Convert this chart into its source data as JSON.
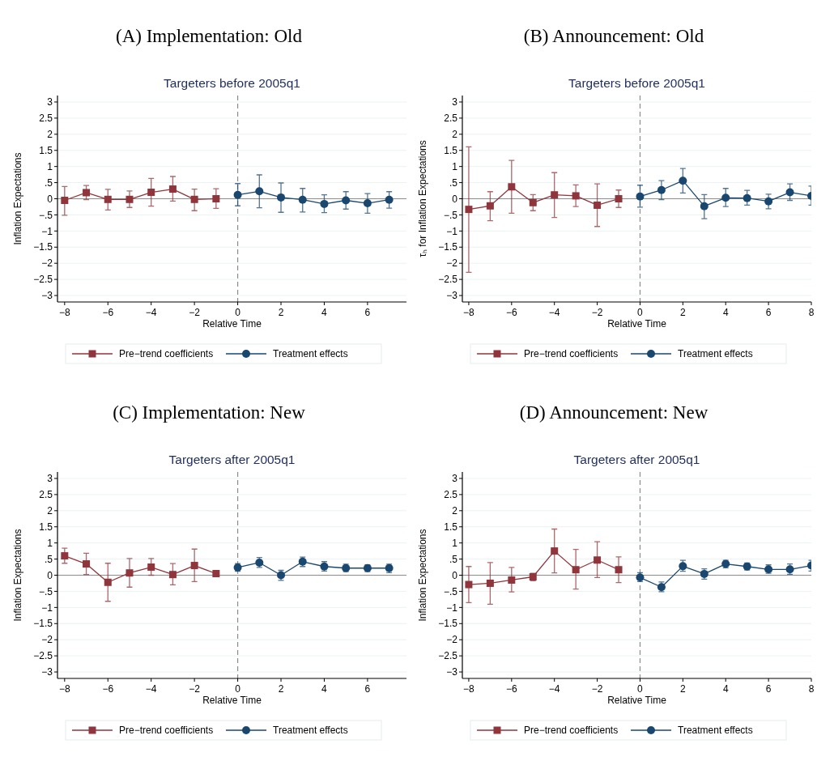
{
  "chart_data": [
    {
      "type": "line",
      "title": "(A) Implementation: Old",
      "subtitle": "Targeters before 2005q1",
      "xlabel": "Relative Time",
      "ylabel": "Inflation Expectations",
      "xlim": [
        -8.33,
        7.8
      ],
      "ylim": [
        -3.2,
        3.2
      ],
      "xticks": [
        {
          "value": -8,
          "label": "−8"
        },
        {
          "value": -6,
          "label": "−6"
        },
        {
          "value": -4,
          "label": "−4"
        },
        {
          "value": -2,
          "label": "−2"
        },
        0,
        2,
        4,
        6
      ],
      "yticks": [
        3,
        2.5,
        2,
        1.5,
        1,
        {
          "value": 0.5,
          "label": ".5"
        },
        0,
        {
          "value": -0.5,
          "label": "−.5"
        },
        {
          "value": -1,
          "label": "−1"
        },
        {
          "value": -1.5,
          "label": "−1.5"
        },
        {
          "value": -2,
          "label": "−2"
        },
        {
          "value": -2.5,
          "label": "−2.5"
        },
        {
          "value": -3,
          "label": "−3"
        }
      ],
      "grid": "y",
      "legend": "bottom",
      "line_style": "solid",
      "ref_lines": [
        {
          "axis": "x",
          "value": 0,
          "color": "#8c8c8c",
          "line_style": "dashed"
        },
        {
          "axis": "y",
          "value": 0,
          "color": "#8c8c8c",
          "line_style": "solid"
        }
      ],
      "series": [
        {
          "name": "Pre−trend coefficients",
          "color": "#90353b",
          "marker": "square",
          "x": [
            -8,
            -7,
            -6,
            -5,
            -4,
            -3,
            -2,
            -1
          ],
          "values": [
            -0.05,
            0.19,
            -0.02,
            -0.02,
            0.2,
            0.3,
            -0.02,
            0
          ],
          "errors": [
            [
              -0.51,
              0.38
            ],
            [
              -0.03,
              0.41
            ],
            [
              -0.35,
              0.29
            ],
            [
              -0.27,
              0.24
            ],
            [
              -0.23,
              0.63
            ],
            [
              -0.07,
              0.69
            ],
            [
              -0.37,
              0.3
            ],
            [
              -0.3,
              0.31
            ]
          ]
        },
        {
          "name": "Treatment effects",
          "color": "#1a476f",
          "marker": "circle",
          "x": [
            0,
            1,
            2,
            3,
            4,
            5,
            6,
            7
          ],
          "values": [
            0.12,
            0.23,
            0.04,
            -0.03,
            -0.16,
            -0.05,
            -0.14,
            -0.03
          ],
          "errors": [
            [
              -0.22,
              0.47
            ],
            [
              -0.28,
              0.74
            ],
            [
              -0.42,
              0.49
            ],
            [
              -0.41,
              0.32
            ],
            [
              -0.43,
              0.12
            ],
            [
              -0.32,
              0.22
            ],
            [
              -0.45,
              0.16
            ],
            [
              -0.29,
              0.22
            ]
          ]
        }
      ]
    },
    {
      "type": "line",
      "title": "(B) Announcement: Old",
      "subtitle": "Targeters before 2005q1",
      "xlabel": "Relative Time",
      "ylabel": "τₕ for Inflation Expectations",
      "xlim": [
        -8.3,
        8
      ],
      "ylim": [
        -3.2,
        3.2
      ],
      "xticks": [
        {
          "value": -8,
          "label": "−8"
        },
        {
          "value": -6,
          "label": "−6"
        },
        {
          "value": -4,
          "label": "−4"
        },
        {
          "value": -2,
          "label": "−2"
        },
        0,
        2,
        4,
        6,
        8
      ],
      "yticks": [
        3,
        2.5,
        2,
        1.5,
        1,
        {
          "value": 0.5,
          "label": ".5"
        },
        0,
        {
          "value": -0.5,
          "label": "−.5"
        },
        {
          "value": -1,
          "label": "−1"
        },
        {
          "value": -1.5,
          "label": "−1.5"
        },
        {
          "value": -2,
          "label": "−2"
        },
        {
          "value": -2.5,
          "label": "−2.5"
        },
        {
          "value": -3,
          "label": "−3"
        }
      ],
      "grid": "y",
      "legend": "bottom",
      "line_style": "solid",
      "ref_lines": [
        {
          "axis": "x",
          "value": 0,
          "color": "#8c8c8c",
          "line_style": "dashed"
        },
        {
          "axis": "y",
          "value": 0,
          "color": "#8c8c8c",
          "line_style": "solid"
        }
      ],
      "series": [
        {
          "name": "Pre−trend coefficients",
          "color": "#90353b",
          "marker": "square",
          "x": [
            -8,
            -7,
            -6,
            -5,
            -4,
            -3,
            -2,
            -1
          ],
          "values": [
            -0.33,
            -0.22,
            0.37,
            -0.12,
            0.12,
            0.09,
            -0.2,
            0
          ],
          "errors": [
            [
              -2.28,
              1.61
            ],
            [
              -0.68,
              0.22
            ],
            [
              -0.45,
              1.19
            ],
            [
              -0.37,
              0.13
            ],
            [
              -0.58,
              0.81
            ],
            [
              -0.24,
              0.43
            ],
            [
              -0.86,
              0.46
            ],
            [
              -0.27,
              0.27
            ]
          ]
        },
        {
          "name": "Treatment effects",
          "color": "#1a476f",
          "marker": "circle",
          "x": [
            0,
            1,
            2,
            3,
            4,
            5,
            6,
            7,
            8
          ],
          "values": [
            0.07,
            0.27,
            0.56,
            -0.23,
            0.03,
            0.02,
            -0.08,
            0.2,
            0.09
          ],
          "errors": [
            [
              -0.26,
              0.42
            ],
            [
              -0.03,
              0.56
            ],
            [
              0.18,
              0.94
            ],
            [
              -0.62,
              0.13
            ],
            [
              -0.24,
              0.32
            ],
            [
              -0.2,
              0.26
            ],
            [
              -0.31,
              0.14
            ],
            [
              -0.05,
              0.46
            ],
            [
              -0.2,
              0.39
            ]
          ]
        }
      ]
    },
    {
      "type": "line",
      "title": "(C) Implementation: New",
      "subtitle": "Targeters after 2005q1",
      "xlabel": "Relative Time",
      "ylabel": "Inflation Expectations",
      "xlim": [
        -8.33,
        7.8
      ],
      "ylim": [
        -3.2,
        3.2
      ],
      "xticks": [
        {
          "value": -8,
          "label": "−8"
        },
        {
          "value": -6,
          "label": "−6"
        },
        {
          "value": -4,
          "label": "−4"
        },
        {
          "value": -2,
          "label": "−2"
        },
        0,
        2,
        4,
        6
      ],
      "yticks": [
        3,
        2.5,
        2,
        1.5,
        1,
        {
          "value": 0.5,
          "label": ".5"
        },
        0,
        {
          "value": -0.5,
          "label": "−.5"
        },
        {
          "value": -1,
          "label": "−1"
        },
        {
          "value": -1.5,
          "label": "−1.5"
        },
        {
          "value": -2,
          "label": "−2"
        },
        {
          "value": -2.5,
          "label": "−2.5"
        },
        {
          "value": -3,
          "label": "−3"
        }
      ],
      "grid": "y",
      "legend": "bottom",
      "line_style": "solid",
      "ref_lines": [
        {
          "axis": "x",
          "value": 0,
          "color": "#8c8c8c",
          "line_style": "dashed"
        },
        {
          "axis": "y",
          "value": 0,
          "color": "#8c8c8c",
          "line_style": "solid"
        }
      ],
      "series": [
        {
          "name": "Pre−trend coefficients",
          "color": "#90353b",
          "marker": "square",
          "x": [
            -8,
            -7,
            -6,
            -5,
            -4,
            -3,
            -2,
            -1
          ],
          "values": [
            0.6,
            0.35,
            -0.22,
            0.07,
            0.25,
            0.02,
            0.3,
            0.05
          ],
          "errors": [
            [
              0.37,
              0.84
            ],
            [
              0.02,
              0.68
            ],
            [
              -0.81,
              0.37
            ],
            [
              -0.37,
              0.52
            ],
            [
              0,
              0.52
            ],
            [
              -0.3,
              0.36
            ],
            [
              -0.2,
              0.81
            ],
            null
          ]
        },
        {
          "name": "Treatment effects",
          "color": "#1a476f",
          "marker": "circle",
          "x": [
            0,
            1,
            2,
            3,
            4,
            5,
            6,
            7
          ],
          "values": [
            0.24,
            0.39,
            0,
            0.42,
            0.27,
            0.22,
            0.22,
            0.22
          ],
          "errors": [
            [
              0.12,
              0.36
            ],
            [
              0.24,
              0.55
            ],
            [
              -0.16,
              0.15
            ],
            [
              0.27,
              0.56
            ],
            [
              0.13,
              0.42
            ],
            [
              0.11,
              0.34
            ],
            [
              0.11,
              0.32
            ],
            [
              0.08,
              0.34
            ]
          ]
        }
      ]
    },
    {
      "type": "line",
      "title": "(D) Announcement: New",
      "subtitle": "Targeters after 2005q1",
      "xlabel": "Relative Time",
      "ylabel": "Inflation Expectations",
      "xlim": [
        -8.3,
        8
      ],
      "ylim": [
        -3.2,
        3.2
      ],
      "xticks": [
        {
          "value": -8,
          "label": "−8"
        },
        {
          "value": -6,
          "label": "−6"
        },
        {
          "value": -4,
          "label": "−4"
        },
        {
          "value": -2,
          "label": "−2"
        },
        0,
        2,
        4,
        6,
        8
      ],
      "yticks": [
        3,
        2.5,
        2,
        1.5,
        1,
        {
          "value": 0.5,
          "label": ".5"
        },
        0,
        {
          "value": -0.5,
          "label": "−.5"
        },
        {
          "value": -1,
          "label": "−1"
        },
        {
          "value": -1.5,
          "label": "−1.5"
        },
        {
          "value": -2,
          "label": "−2"
        },
        {
          "value": -2.5,
          "label": "−2.5"
        },
        {
          "value": -3,
          "label": "−3"
        }
      ],
      "grid": "y",
      "legend": "bottom",
      "line_style": "solid",
      "ref_lines": [
        {
          "axis": "x",
          "value": 0,
          "color": "#8c8c8c",
          "line_style": "dashed"
        },
        {
          "axis": "y",
          "value": 0,
          "color": "#8c8c8c",
          "line_style": "solid"
        }
      ],
      "series": [
        {
          "name": "Pre−trend coefficients",
          "color": "#90353b",
          "marker": "square",
          "x": [
            -8,
            -7,
            -6,
            -5,
            -4,
            -3,
            -2,
            -1
          ],
          "values": [
            -0.29,
            -0.25,
            -0.15,
            -0.05,
            0.75,
            0.17,
            0.47,
            0.17
          ],
          "errors": [
            [
              -0.85,
              0.27
            ],
            [
              -0.9,
              0.39
            ],
            [
              -0.52,
              0.24
            ],
            [
              -0.17,
              0.06
            ],
            [
              0.07,
              1.43
            ],
            [
              -0.43,
              0.8
            ],
            [
              -0.07,
              1.04
            ],
            [
              -0.23,
              0.57
            ]
          ]
        },
        {
          "name": "Treatment effects",
          "color": "#1a476f",
          "marker": "circle",
          "x": [
            0,
            1,
            2,
            3,
            4,
            5,
            6,
            7,
            8
          ],
          "values": [
            -0.07,
            -0.37,
            0.28,
            0.04,
            0.35,
            0.27,
            0.18,
            0.18,
            0.3
          ],
          "errors": [
            [
              -0.2,
              0.08
            ],
            [
              -0.51,
              -0.21
            ],
            [
              0.12,
              0.46
            ],
            [
              -0.12,
              0.2
            ],
            [
              0.23,
              0.46
            ],
            [
              0.16,
              0.38
            ],
            [
              0.06,
              0.32
            ],
            [
              0.03,
              0.35
            ],
            [
              0.13,
              0.46
            ]
          ]
        }
      ]
    }
  ]
}
